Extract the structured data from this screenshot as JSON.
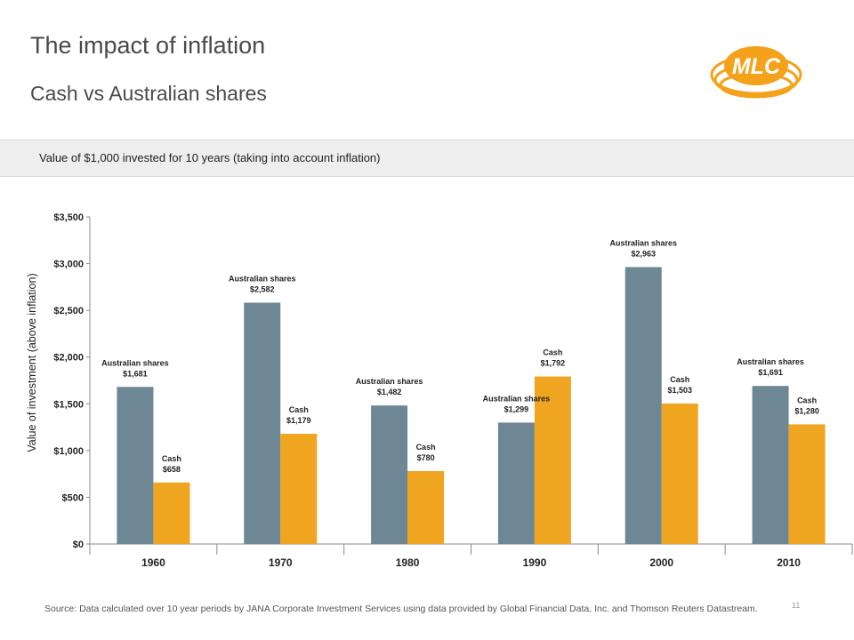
{
  "slide": {
    "title": "The impact of inflation",
    "subtitle": "Cash vs Australian shares",
    "logo_text": "MLC",
    "banner": "Value of $1,000 invested for 10 years (taking into account inflation)",
    "source": "Source: Data calculated over 10 year periods by JANA Corporate Investment Services using data provided by Global Financial Data, Inc. and Thomson Reuters Datastream.",
    "page_number": "11"
  },
  "colors": {
    "shares": "#6d8795",
    "cash": "#efa51f",
    "logo_orange": "#f3a21a"
  },
  "chart_data": {
    "type": "bar",
    "categories": [
      "1960",
      "1970",
      "1980",
      "1990",
      "2000",
      "2010"
    ],
    "series": [
      {
        "name": "Australian shares",
        "values": [
          1681,
          2582,
          1482,
          1299,
          2963,
          1691
        ],
        "labels": [
          "$1,681",
          "$2,582",
          "$1,482",
          "$1,299",
          "$2,963",
          "$1,691"
        ]
      },
      {
        "name": "Cash",
        "values": [
          658,
          1179,
          780,
          1792,
          1503,
          1280
        ],
        "labels": [
          "$658",
          "$1,179",
          "$780",
          "$1,792",
          "$1,503",
          "$1,280"
        ]
      }
    ],
    "ylabel": "Value of investment (above inflation)",
    "ylim": [
      0,
      3500
    ],
    "yticks": [
      0,
      500,
      1000,
      1500,
      2000,
      2500,
      3000,
      3500
    ],
    "ytick_labels": [
      "$0",
      "$500",
      "$1,000",
      "$1,500",
      "$2,000",
      "$2,500",
      "$3,000",
      "$3,500"
    ],
    "grid": false,
    "legend": "none"
  }
}
